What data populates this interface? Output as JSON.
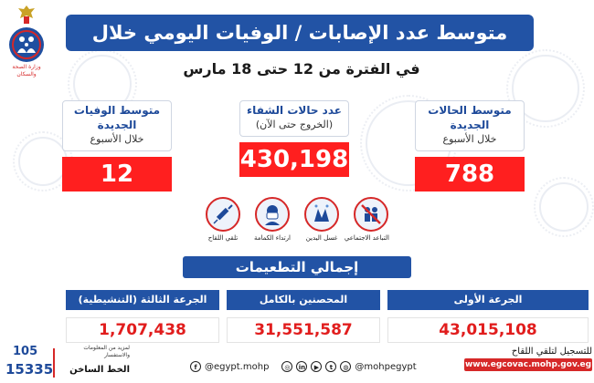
{
  "header": {
    "title": "متوسط عدد الإصابات / الوفيات اليومي خلال الأسبوع",
    "subtitle": "في الفترة من 12 حتى 18 مارس"
  },
  "ministry_logo": {
    "text": "وزارة الصحة والسكان"
  },
  "stats": [
    {
      "label1": "متوسط الحالات الجديدة",
      "label2": "خلال الأسبوع",
      "value": "788"
    },
    {
      "label1": "عدد حالات الشفاء",
      "label2": "(الخروج حتى الآن)",
      "value": "430,198"
    },
    {
      "label1": "متوسط الوفيات الجديدة",
      "label2": "خلال الأسبوع",
      "value": "12"
    }
  ],
  "precautions": [
    {
      "caption": "التباعد الاجتماعي",
      "icon": "no-crowd-icon"
    },
    {
      "caption": "غسل اليدين",
      "icon": "hand-wash-icon"
    },
    {
      "caption": "ارتداء الكمامة",
      "icon": "mask-icon"
    },
    {
      "caption": "تلقي اللقاح",
      "icon": "syringe-icon"
    }
  ],
  "vaccinations": {
    "title": "إجمالي التطعيمات",
    "items": [
      {
        "label": "الجرعة الأولى",
        "value": "43,015,108"
      },
      {
        "label": "المحصنين بالكامل",
        "value": "31,551,587"
      },
      {
        "label": "الجرعة الثالثة (التنشيطية)",
        "value": "1,707,438"
      }
    ]
  },
  "hotline": {
    "number1": "105",
    "number2": "15335",
    "info": "لمزيد من المعلومات والاستفسار",
    "label": "الخط الساخن"
  },
  "social": {
    "facebook": "@egypt.mohp",
    "handle": "@mohpegypt"
  },
  "register": {
    "text": "للتسجيل لتلقي اللقاح",
    "url": "www.egcovac.mohp.gov.eg"
  },
  "colors": {
    "blue": "#2253a5",
    "red": "#ff1f1f",
    "accent_red": "#d62828"
  }
}
